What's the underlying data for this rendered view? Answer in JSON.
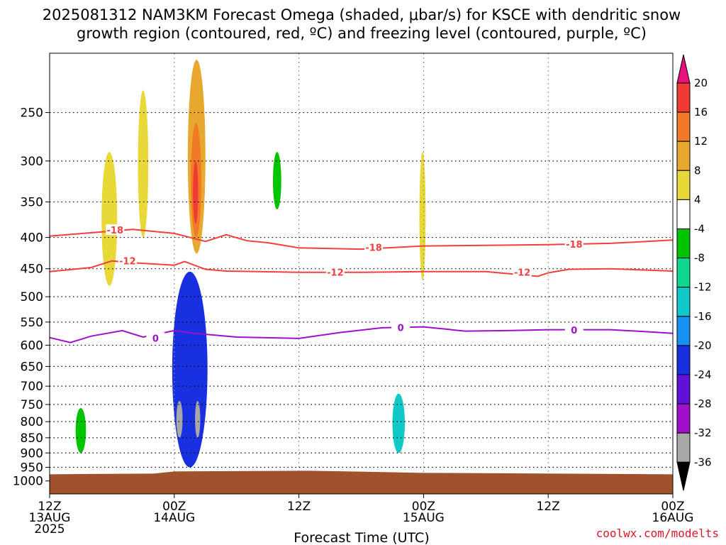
{
  "chart_data": {
    "type": "contour",
    "title_line1": "2025081312 NAM3KM Forecast Omega (shaded, μbar/s) for KSCE with dendritic snow",
    "title_line2": "growth region (contoured, red, ºC) and freezing level (contoured, purple, ºC)",
    "xlabel": "Forecast Time (UTC)",
    "ylabel": "",
    "credit": "coolwx.com/modelts",
    "x_ticks": [
      {
        "hour": 0,
        "line1": "12Z",
        "line2": "13AUG",
        "line3": "2025"
      },
      {
        "hour": 12,
        "line1": "00Z",
        "line2": "14AUG",
        "line3": ""
      },
      {
        "hour": 24,
        "line1": "12Z",
        "line2": "",
        "line3": ""
      },
      {
        "hour": 36,
        "line1": "00Z",
        "line2": "15AUG",
        "line3": ""
      },
      {
        "hour": 48,
        "line1": "12Z",
        "line2": "",
        "line3": ""
      },
      {
        "hour": 60,
        "line1": "00Z",
        "line2": "16AUG",
        "line3": ""
      }
    ],
    "x_range_hours": [
      0,
      60
    ],
    "y_ticks": [
      "250",
      "300",
      "350",
      "400",
      "450",
      "500",
      "550",
      "600",
      "650",
      "700",
      "750",
      "800",
      "850",
      "900",
      "950",
      "1000"
    ],
    "y_range_hPa": [
      200,
      1050
    ],
    "y_scale": "log-pressure",
    "grid": true,
    "colorbar": {
      "labels": [
        "20",
        "16",
        "12",
        "8",
        "4",
        "-4",
        "-8",
        "-12",
        "-16",
        "-20",
        "-24",
        "-28",
        "-32",
        "-36"
      ],
      "colors": [
        "#e8107a",
        "#f03a32",
        "#f07a28",
        "#e8a830",
        "#e8d838",
        "#ffffff",
        "#00c400",
        "#10d890",
        "#10c8c8",
        "#1890f0",
        "#1830e0",
        "#6010d8",
        "#a010c8",
        "#a8a8a8",
        "#000000"
      ]
    },
    "contours": [
      {
        "name": "dgz_-18",
        "color": "#f04040",
        "label": "-18",
        "hours": [
          0,
          4,
          8,
          12,
          15,
          17,
          19,
          21,
          24,
          30,
          36,
          42,
          48,
          54,
          60
        ],
        "hPa": [
          398,
          393,
          388,
          394,
          406,
          396,
          405,
          408,
          416,
          418,
          413,
          412,
          411,
          409,
          404
        ]
      },
      {
        "name": "dgz_-12",
        "color": "#f04040",
        "label": "-12",
        "hours": [
          0,
          4,
          6,
          8,
          12,
          13,
          15,
          17,
          24,
          30,
          36,
          42,
          47,
          48,
          50,
          54,
          60
        ],
        "hPa": [
          455,
          448,
          437,
          440,
          444,
          438,
          451,
          454,
          456,
          456,
          455,
          455,
          463,
          457,
          451,
          450,
          454
        ]
      },
      {
        "name": "freezing_level",
        "color": "#a010c8",
        "label": "0",
        "hours": [
          0,
          2,
          4,
          7,
          9,
          12,
          14,
          18,
          24,
          28,
          32,
          36,
          40,
          44,
          48,
          54,
          58,
          60
        ],
        "hPa": [
          583,
          594,
          580,
          568,
          582,
          568,
          574,
          582,
          585,
          572,
          562,
          560,
          569,
          568,
          566,
          566,
          571,
          574
        ]
      }
    ],
    "contour_labels": [
      {
        "label": "-18",
        "hour": 6.3,
        "hPa": 389,
        "color": "#f04040"
      },
      {
        "label": "-18",
        "hour": 31.2,
        "hPa": 415,
        "color": "#f04040"
      },
      {
        "label": "-18",
        "hour": 50.5,
        "hPa": 410,
        "color": "#f04040"
      },
      {
        "label": "-12",
        "hour": 7.5,
        "hPa": 437,
        "color": "#f04040"
      },
      {
        "label": "-12",
        "hour": 27.5,
        "hPa": 456,
        "color": "#f04040"
      },
      {
        "label": "-12",
        "hour": 45.5,
        "hPa": 456,
        "color": "#f04040"
      },
      {
        "label": "0",
        "hour": 10.2,
        "hPa": 584,
        "color": "#a010c8"
      },
      {
        "label": "0",
        "hour": 33.8,
        "hPa": 561,
        "color": "#a010c8"
      },
      {
        "label": "0",
        "hour": 50.5,
        "hPa": 567,
        "color": "#a010c8"
      }
    ],
    "omega_regions": [
      {
        "name": "upward-ascent-early",
        "hours": [
          5.0,
          6.5
        ],
        "hPa": [
          290,
          480
        ],
        "value": 6
      },
      {
        "name": "upward-ascent-pre00z",
        "hours": [
          8.5,
          9.5
        ],
        "hPa": [
          230,
          400
        ],
        "value": 6
      },
      {
        "name": "upward-core-upper",
        "hours": [
          13.3,
          15.0
        ],
        "hPa": [
          205,
          425
        ],
        "value": 8
      },
      {
        "name": "upward-core-inner",
        "hours": [
          13.6,
          14.6
        ],
        "hPa": [
          260,
          400
        ],
        "value": 12
      },
      {
        "name": "upward-core-max",
        "hours": [
          13.8,
          14.3
        ],
        "hPa": [
          300,
          380
        ],
        "value": 18
      },
      {
        "name": "upward-mid-2130",
        "hours": [
          21.5,
          22.3
        ],
        "hPa": [
          290,
          360
        ],
        "value": -6
      },
      {
        "name": "upward-0520-upper",
        "hours": [
          35.6,
          36.2
        ],
        "hPa": [
          290,
          470
        ],
        "value": 5
      },
      {
        "name": "downward-core-14aug",
        "hours": [
          11.8,
          15.2
        ],
        "hPa": [
          455,
          950
        ],
        "value": -20
      },
      {
        "name": "downward-cell-a",
        "hours": [
          12.2,
          12.8
        ],
        "hPa": [
          740,
          850
        ],
        "value": -34
      },
      {
        "name": "downward-cell-b",
        "hours": [
          14.0,
          14.5
        ],
        "hPa": [
          740,
          850
        ],
        "value": -34
      },
      {
        "name": "downward-15aug",
        "hours": [
          33.0,
          34.2
        ],
        "hPa": [
          720,
          900
        ],
        "value": -14
      },
      {
        "name": "downward-early",
        "hours": [
          2.5,
          3.5
        ],
        "hPa": [
          760,
          900
        ],
        "value": -6
      }
    ],
    "surface_band": {
      "color": "#a0522d",
      "hPa": [
        970,
        1050
      ]
    }
  }
}
